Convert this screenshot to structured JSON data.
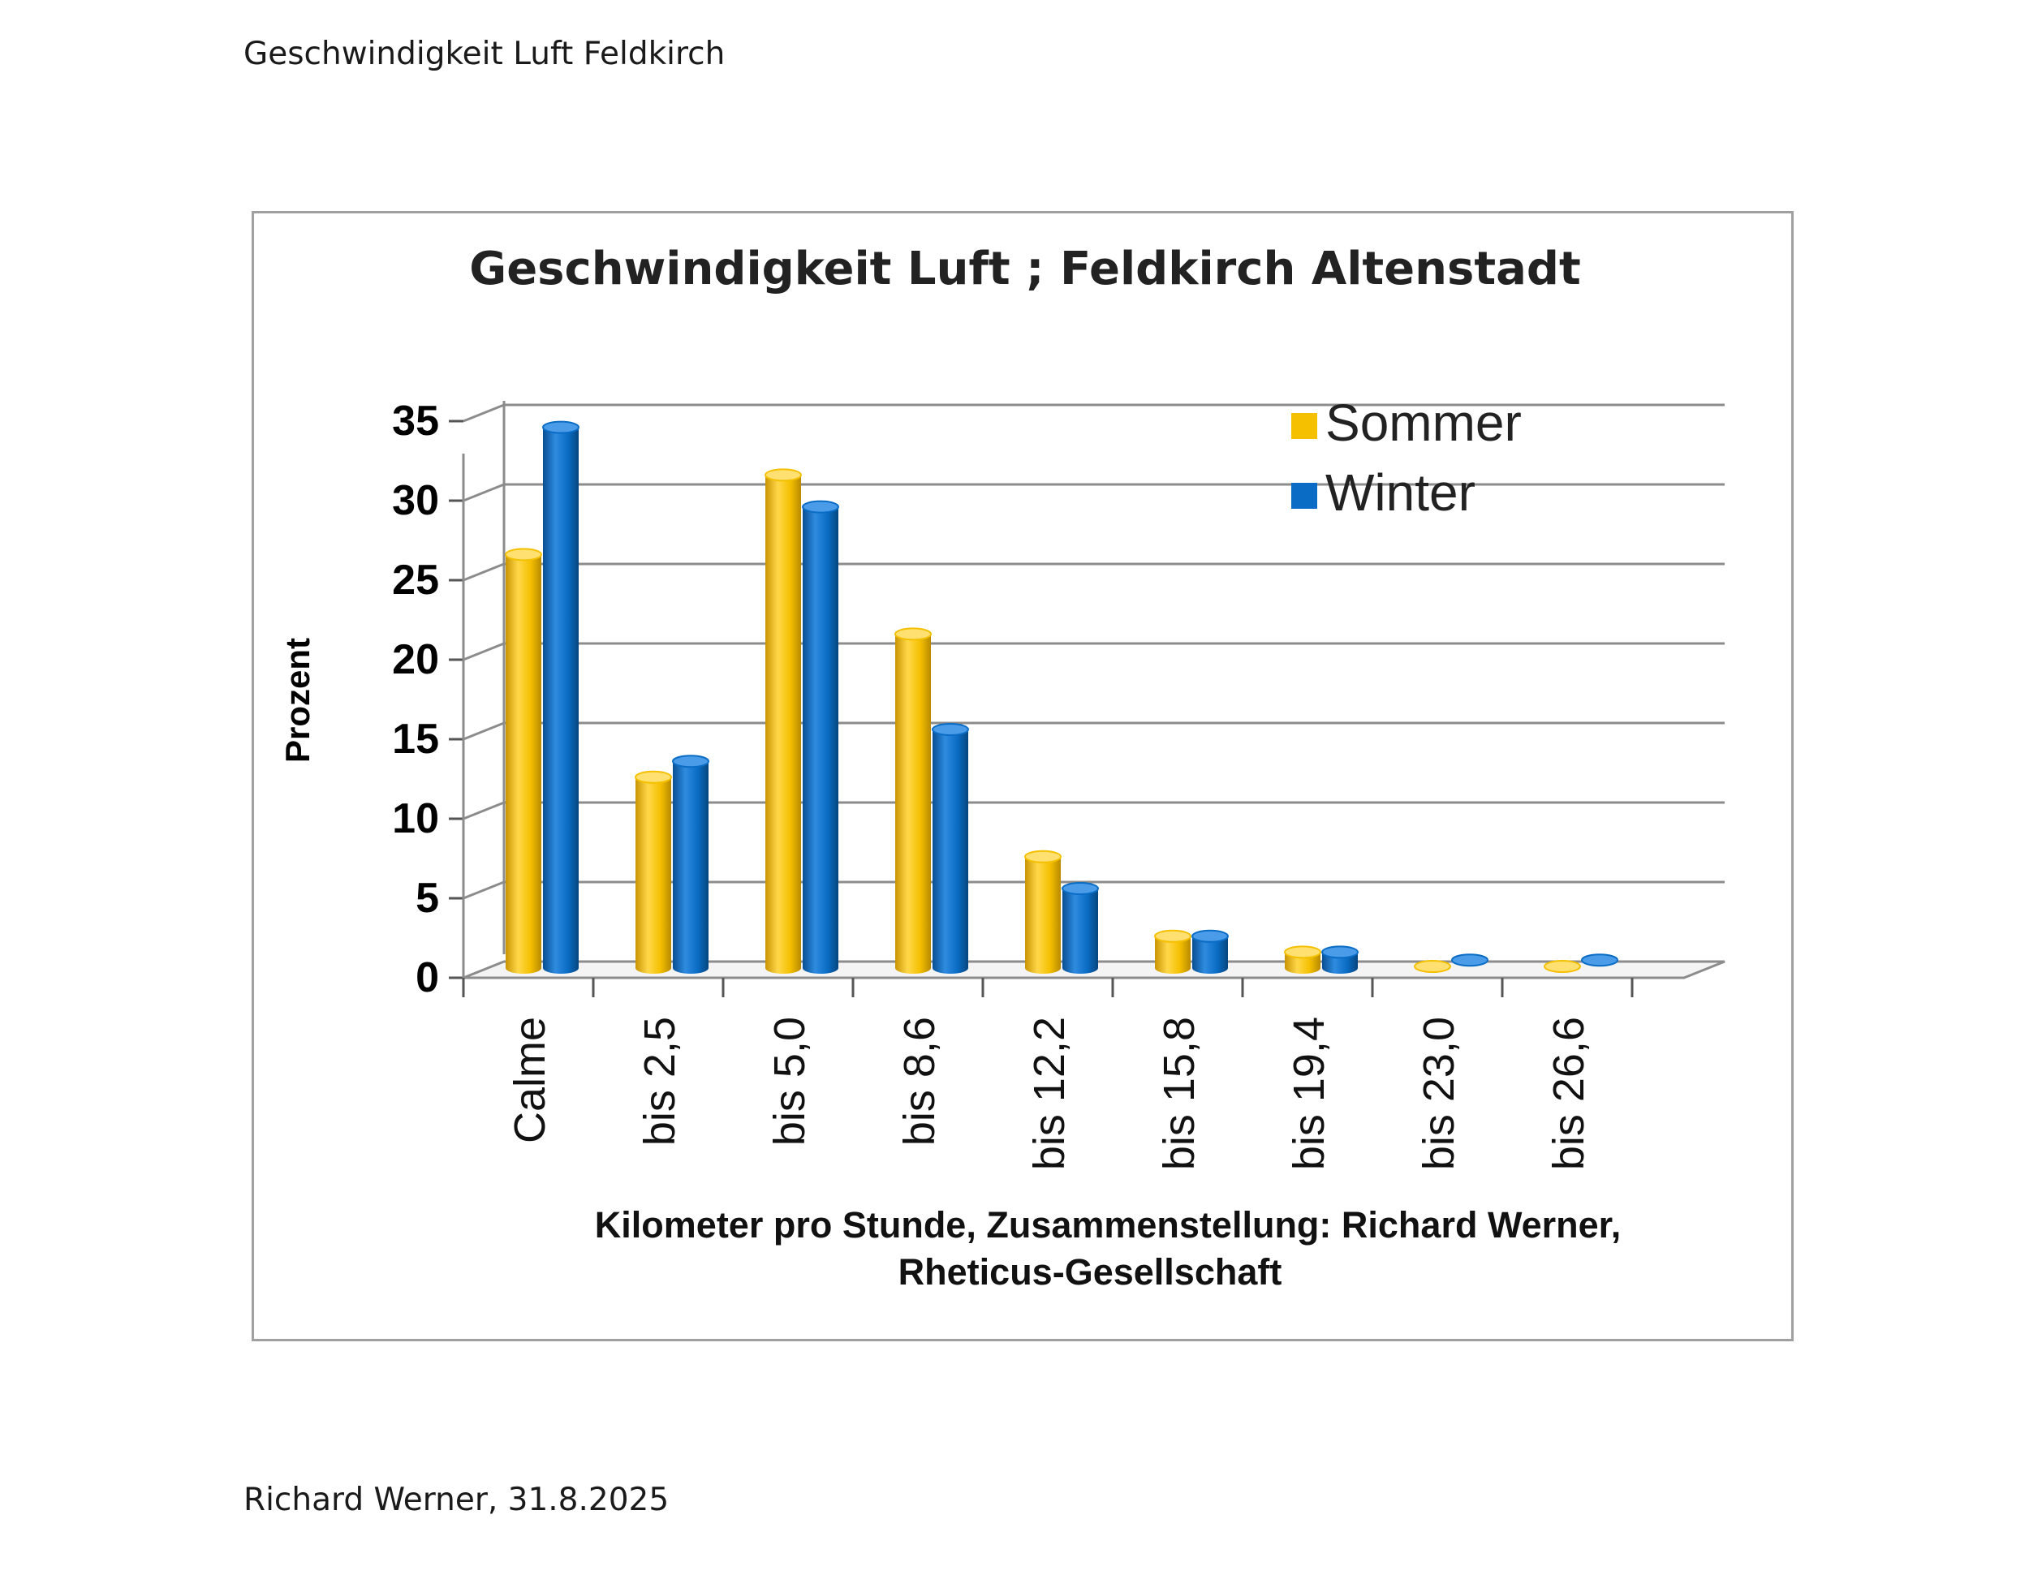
{
  "document": {
    "header": "Geschwindigkeit Luft Feldkirch",
    "footer": "Richard Werner, 31.8.2025"
  },
  "colors": {
    "sommer": "#F5C000",
    "winter": "#0A6CC4",
    "grid": "#8c8c8c"
  },
  "chart_data": {
    "type": "bar",
    "title": "Geschwindigkeit Luft ; Feldkirch Altenstadt",
    "xlabel_line1": "Kilometer pro Stunde, Zusammenstellung: Richard Werner,",
    "xlabel_line2": "Rheticus-Gesellschaft",
    "ylabel": "Prozent",
    "ylim": [
      0,
      35
    ],
    "yticks": [
      "0",
      "5",
      "10",
      "15",
      "20",
      "25",
      "30",
      "35"
    ],
    "categories": [
      "Calme",
      "bis 2,5",
      "bis 5,0",
      "bis 8,6",
      "bis 12,2",
      "bis 15,8",
      "bis 19,4",
      "bis 23,0",
      "bis 26,6"
    ],
    "series": [
      {
        "name": "Sommer",
        "values": [
          26,
          12,
          31,
          21,
          7,
          2,
          1,
          0,
          0
        ]
      },
      {
        "name": "Winter",
        "values": [
          34,
          13,
          29,
          15,
          5,
          2,
          1,
          0.5,
          0.5
        ]
      }
    ],
    "grid": true,
    "legend": "top-right"
  }
}
